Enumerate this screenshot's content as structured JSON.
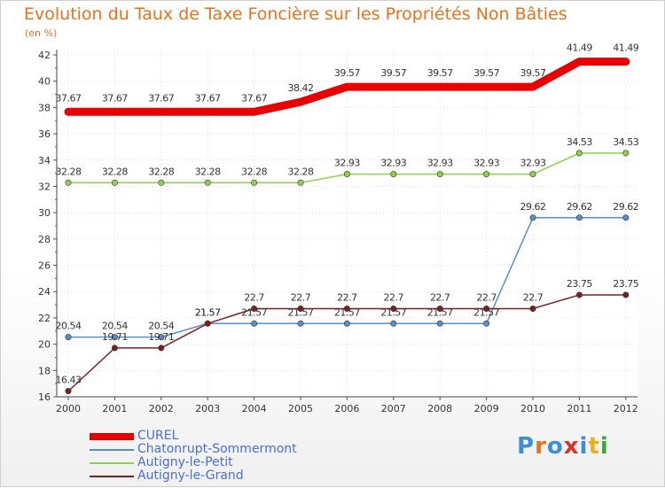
{
  "title": "Evolution du Taux de Taxe Foncière sur les Propriétés Non Bâties",
  "unit_label": "(en %)",
  "logo": {
    "text": "Proxiti",
    "colors": [
      "#3a8fd8",
      "#e8711e",
      "#3a8fd8",
      "#d9342b",
      "#3a8fd8",
      "#e8b21e",
      "#3aa83a"
    ]
  },
  "chart_data": {
    "type": "line",
    "title": "Evolution du Taux de Taxe Foncière sur les Propriétés Non Bâties",
    "ylabel": "(en %)",
    "xlabel": "",
    "x": [
      "2000",
      "2001",
      "2002",
      "2003",
      "2004",
      "2005",
      "2006",
      "2007",
      "2008",
      "2009",
      "2010",
      "2011",
      "2012"
    ],
    "ylim": [
      16,
      42
    ],
    "yticks": [
      16,
      18,
      20,
      22,
      24,
      26,
      28,
      30,
      32,
      34,
      36,
      38,
      40,
      42
    ],
    "grid": true,
    "legend_position": "bottom-left",
    "series": [
      {
        "name": "CUREL",
        "color": "#e80000",
        "thick": true,
        "values": [
          37.67,
          37.67,
          37.67,
          37.67,
          37.67,
          38.42,
          39.57,
          39.57,
          39.57,
          39.57,
          39.57,
          41.49,
          41.49
        ],
        "labels": [
          "37.67",
          "37.67",
          "37.67",
          "37.67",
          "37.67",
          "38.42",
          "39.57",
          "39.57",
          "39.57",
          "39.57",
          "39.57",
          "41.49",
          "41.49"
        ]
      },
      {
        "name": "Chatonrupt-Sommermont",
        "color": "#5a8ec8",
        "thick": false,
        "values": [
          20.54,
          20.54,
          20.54,
          21.57,
          21.57,
          21.57,
          21.57,
          21.57,
          21.57,
          21.57,
          29.62,
          29.62,
          29.62
        ],
        "labels": [
          "20.54",
          "20.54",
          "20.54",
          "21.57",
          "21.57",
          "21.57",
          "21.57",
          "21.57",
          "21.57",
          "21.57",
          "29.62",
          "29.62",
          "29.62"
        ]
      },
      {
        "name": "Autigny-le-Petit",
        "color": "#8cd24a",
        "thick": false,
        "values": [
          32.28,
          32.28,
          32.28,
          32.28,
          32.28,
          32.28,
          32.93,
          32.93,
          32.93,
          32.93,
          32.93,
          34.53,
          34.53
        ],
        "labels": [
          "32.28",
          "32.28",
          "32.28",
          "32.28",
          "32.28",
          "32.28",
          "32.93",
          "32.93",
          "32.93",
          "32.93",
          "32.93",
          "34.53",
          "34.53"
        ]
      },
      {
        "name": "Autigny-le-Grand",
        "color": "#7a2020",
        "thick": false,
        "values": [
          16.43,
          19.71,
          19.71,
          21.57,
          22.7,
          22.7,
          22.7,
          22.7,
          22.7,
          22.7,
          22.7,
          23.75,
          23.75
        ],
        "labels": [
          "16.43",
          "19.71",
          "19.71",
          "21.57",
          "22.7",
          "22.7",
          "22.7",
          "22.7",
          "22.7",
          "22.7",
          "22.7",
          "23.75",
          "23.75"
        ]
      }
    ]
  }
}
